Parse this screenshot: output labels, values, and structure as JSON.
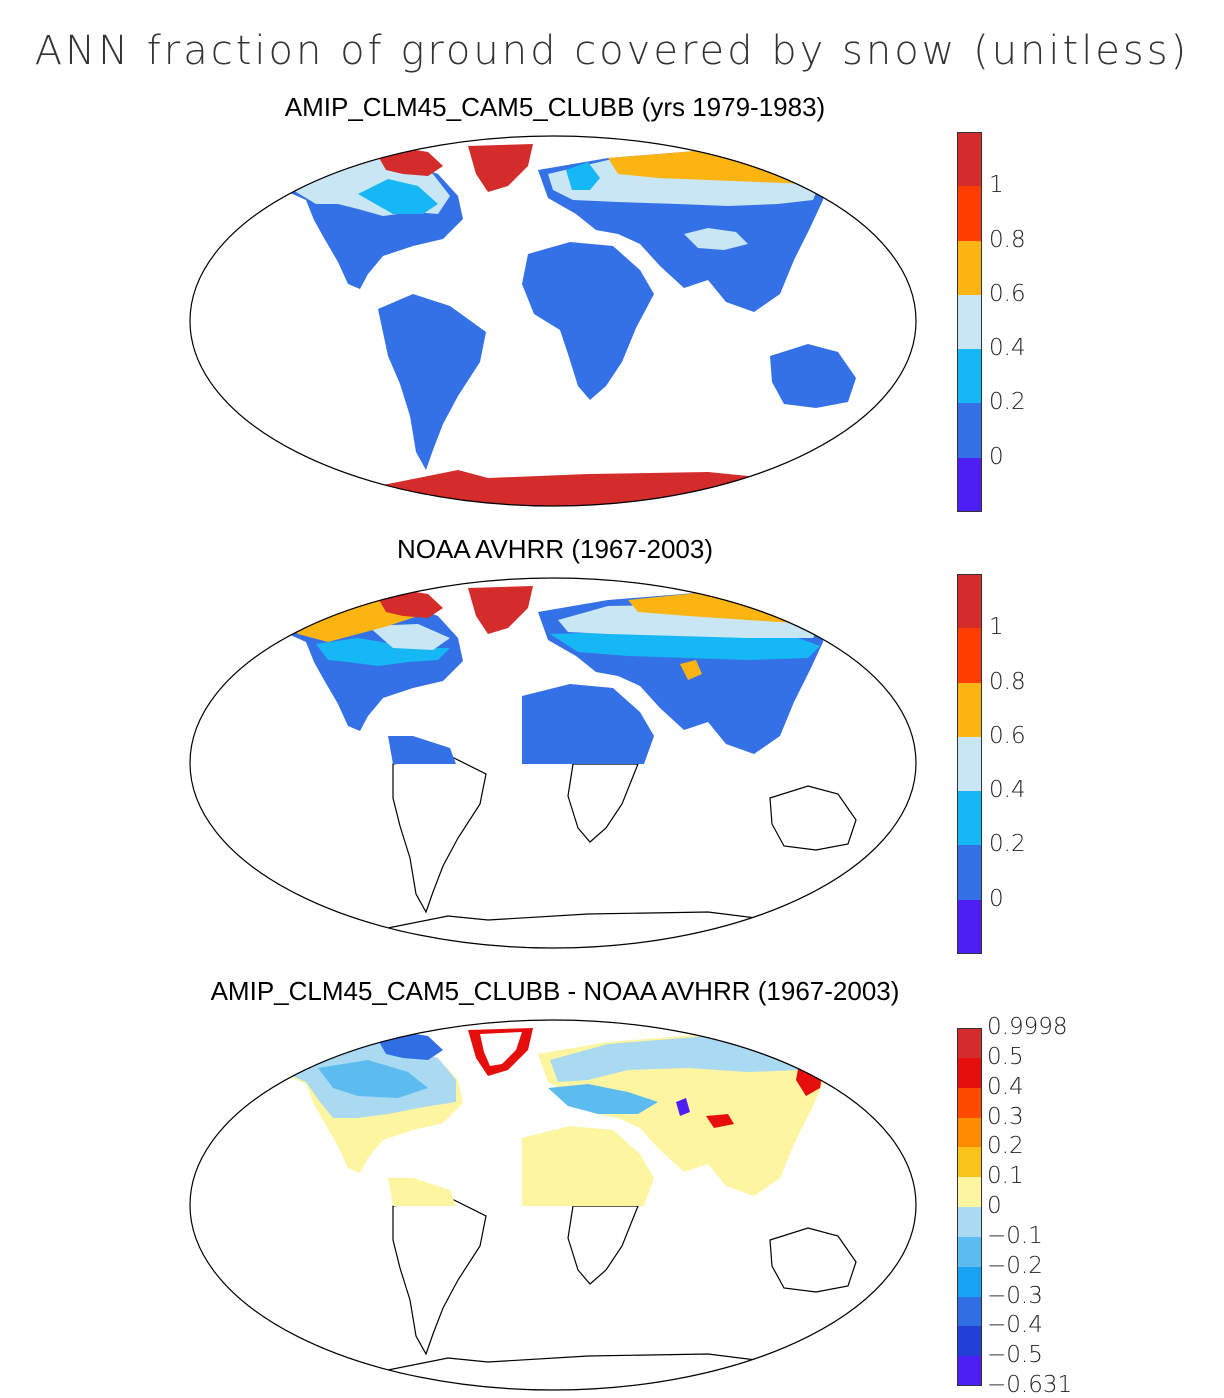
{
  "title": "ANN fraction of ground covered by snow (unitless)",
  "panels": [
    {
      "id": "model",
      "subtitle": "AMIP_CLM45_CAM5_CLUBB (yrs 1979-1983)",
      "colorbar": {
        "colors": [
          "#d42b2b",
          "#ff3d00",
          "#fbb412",
          "#c8e6f4",
          "#15b7f5",
          "#3571e6",
          "#4d1ff5"
        ],
        "labels": [
          "1",
          "0.8",
          "0.6",
          "0.4",
          "0.2",
          "0"
        ]
      }
    },
    {
      "id": "obs",
      "subtitle": "NOAA AVHRR (1967-2003)",
      "colorbar": {
        "colors": [
          "#d42b2b",
          "#ff3d00",
          "#fbb412",
          "#c8e6f4",
          "#15b7f5",
          "#3571e6",
          "#4d1ff5"
        ],
        "labels": [
          "1",
          "0.8",
          "0.6",
          "0.4",
          "0.2",
          "0"
        ]
      }
    },
    {
      "id": "diff",
      "subtitle": "AMIP_CLM45_CAM5_CLUBB - NOAA AVHRR (1967-2003)",
      "colorbar": {
        "colors": [
          "#d42b2b",
          "#e60d0d",
          "#ff4a00",
          "#ff8c00",
          "#fbc31a",
          "#fdf5a0",
          "#a9daf2",
          "#5cbcf0",
          "#1aa3f5",
          "#2f6ee3",
          "#2240d8",
          "#4d1ff5"
        ],
        "labels": [
          "0.9998",
          "0.5",
          "0.4",
          "0.3",
          "0.2",
          "0.1",
          "0",
          "−0.1",
          "−0.2",
          "−0.3",
          "−0.4",
          "−0.5",
          "−0.631"
        ]
      }
    }
  ]
}
